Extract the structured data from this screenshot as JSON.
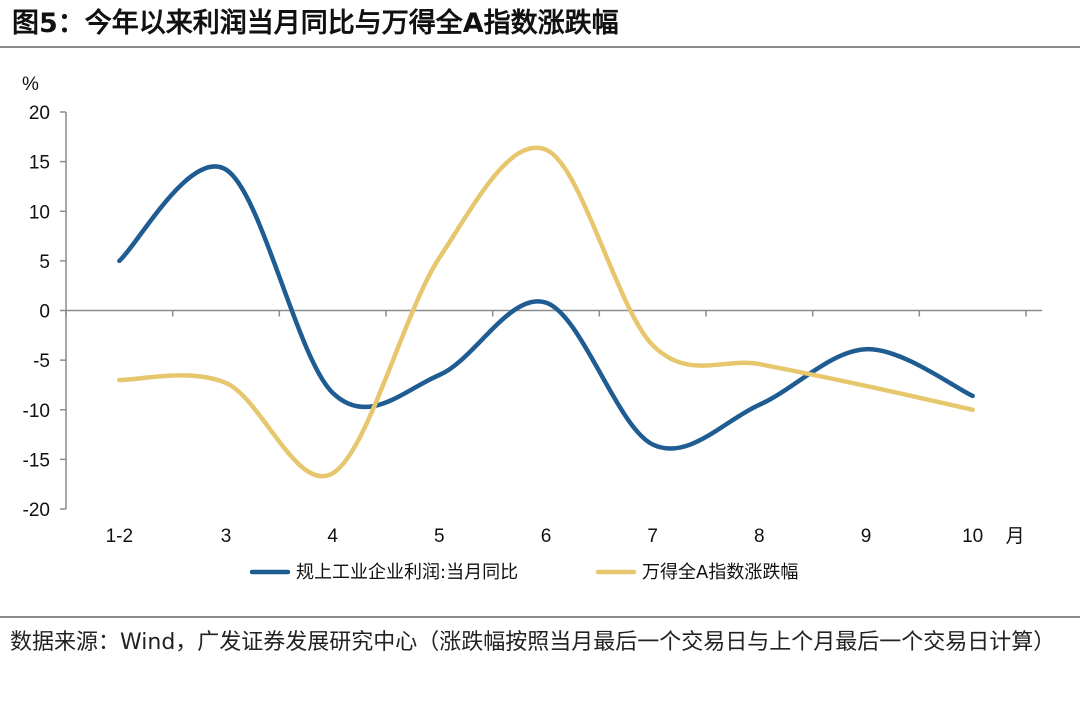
{
  "header": {
    "title": "图5：今年以来利润当月同比与万得全A指数涨跌幅"
  },
  "chart_data": {
    "type": "line",
    "categories": [
      "1-2",
      "3",
      "4",
      "5",
      "6",
      "7",
      "8",
      "9",
      "10"
    ],
    "x_unit": "月",
    "y_unit": "%",
    "ylim": [
      -20,
      20
    ],
    "yticks": [
      20,
      15,
      10,
      5,
      0,
      -5,
      -10,
      -15,
      -20
    ],
    "series": [
      {
        "name": "规上工业企业利润:当月同比",
        "color": "#1f5c91",
        "values": [
          5.0,
          14.2,
          -8.3,
          -6.5,
          0.8,
          -13.5,
          -9.5,
          -3.9,
          -8.6
        ]
      },
      {
        "name": "万得全A指数涨跌幅",
        "color": "#e6c76e",
        "values": [
          -7.0,
          -7.3,
          -16.4,
          5.3,
          16.2,
          -3.5,
          -5.4,
          -7.6,
          -10.0
        ]
      }
    ],
    "legend": "bottom"
  },
  "footer": {
    "source": "数据来源：Wind，广发证券发展研究中心（涨跌幅按照当月最后一个交易日与上个月最后一个交易日计算）"
  }
}
